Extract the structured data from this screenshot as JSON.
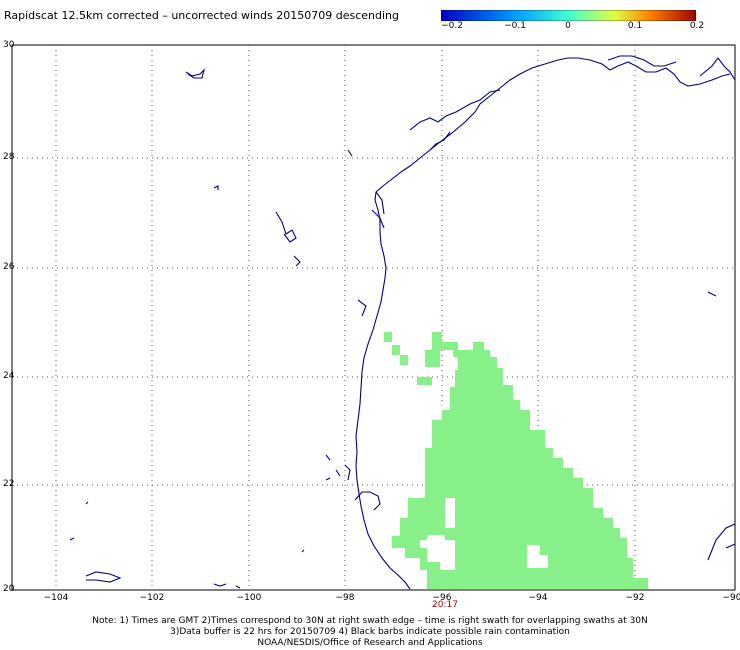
{
  "title": "Rapidscat 12.5km corrected – uncorrected winds 20150709 descending",
  "colorbar": {
    "ticks": [
      "−0.2",
      "−0.1",
      "0",
      "0.1",
      "0.2"
    ],
    "colors": [
      "#0000c8",
      "#00a0ff",
      "#40ffd0",
      "#e0ff40",
      "#ff8000",
      "#a00000"
    ]
  },
  "axes": {
    "lon_labels": [
      "−104",
      "−102",
      "−100",
      "−98",
      "−96",
      "−94",
      "−92",
      "−90"
    ],
    "lat_labels": [
      "30",
      "28",
      "26",
      "24",
      "22",
      "20"
    ],
    "lon_range": [
      -104.5,
      -90
    ],
    "lat_range": [
      20,
      30
    ],
    "grid": true
  },
  "swath_time": "20:17",
  "notes": {
    "line1": "Note: 1) Times are GMT 2)Times correspond to 30N at right swath edge – time is right swath for overlapping swaths at 30N",
    "line2": "3)Data buffer is 22 hrs for 20150709 4) Black barbs indicate possible rain contamination",
    "line3": "NOAA/NESDIS/Office of Research and Applications"
  },
  "colors": {
    "coast": "#000080",
    "grid": "#555555",
    "difference_zero": "#88f088",
    "time": "#a00000"
  }
}
